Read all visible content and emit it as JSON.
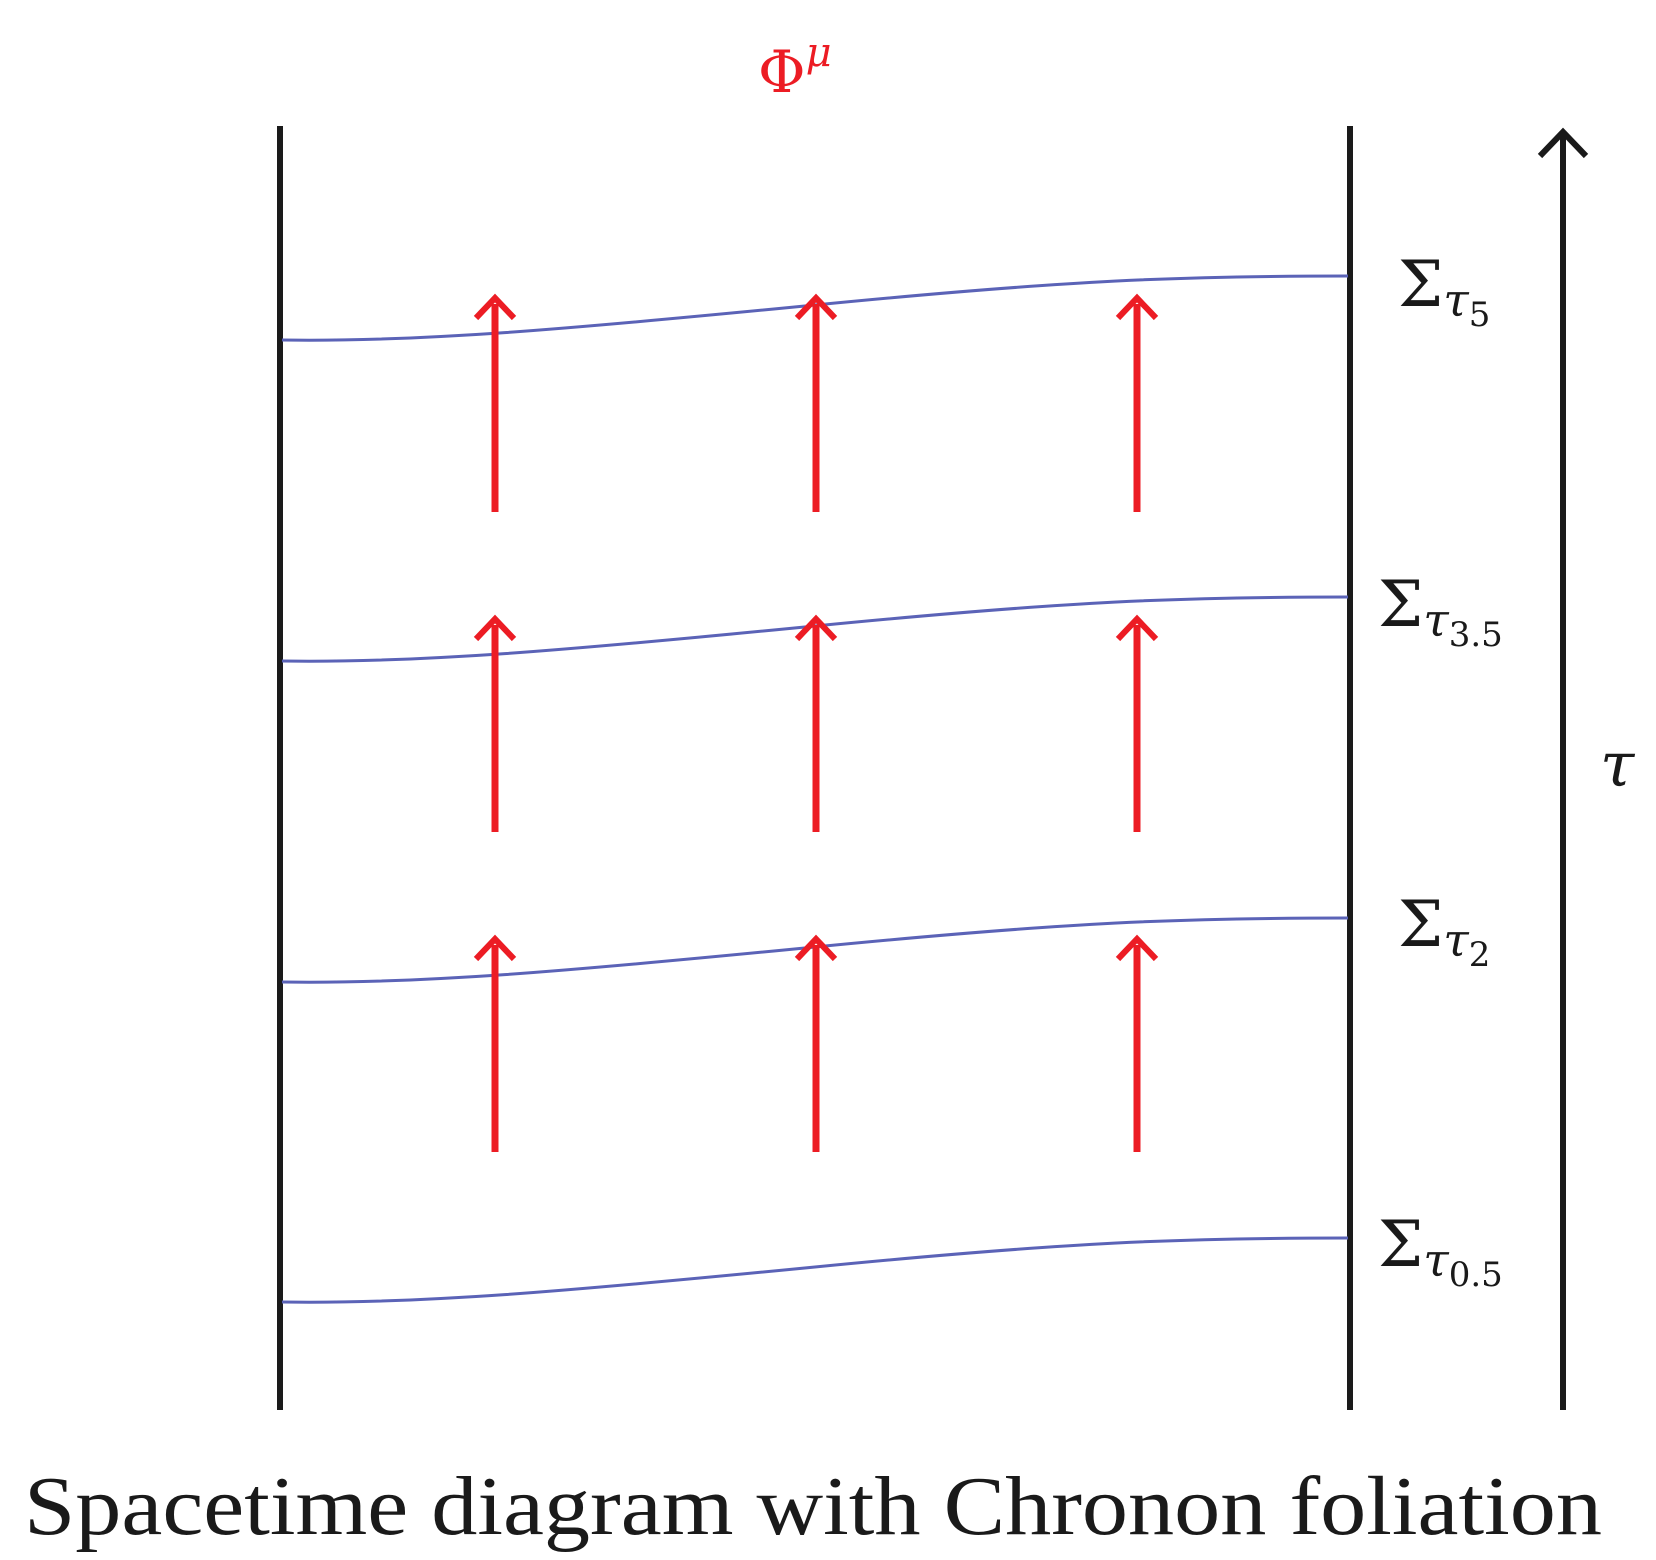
{
  "field_label": {
    "symbol": "Φ",
    "superscript": "μ"
  },
  "slices": [
    {
      "sigma": "Σ",
      "subscript_var": "τ",
      "subscript_index": "5"
    },
    {
      "sigma": "Σ",
      "subscript_var": "τ",
      "subscript_index": "3.5"
    },
    {
      "sigma": "Σ",
      "subscript_var": "τ",
      "subscript_index": "2"
    },
    {
      "sigma": "Σ",
      "subscript_var": "τ",
      "subscript_index": "0.5"
    }
  ],
  "time_axis_label": "τ",
  "caption": "Spacetime diagram with Chronon foliation",
  "colors": {
    "boundary": "#1a1a1a",
    "slice": "#5b63b7",
    "vector": "#ec1c24",
    "text": "#1a1a1a"
  }
}
